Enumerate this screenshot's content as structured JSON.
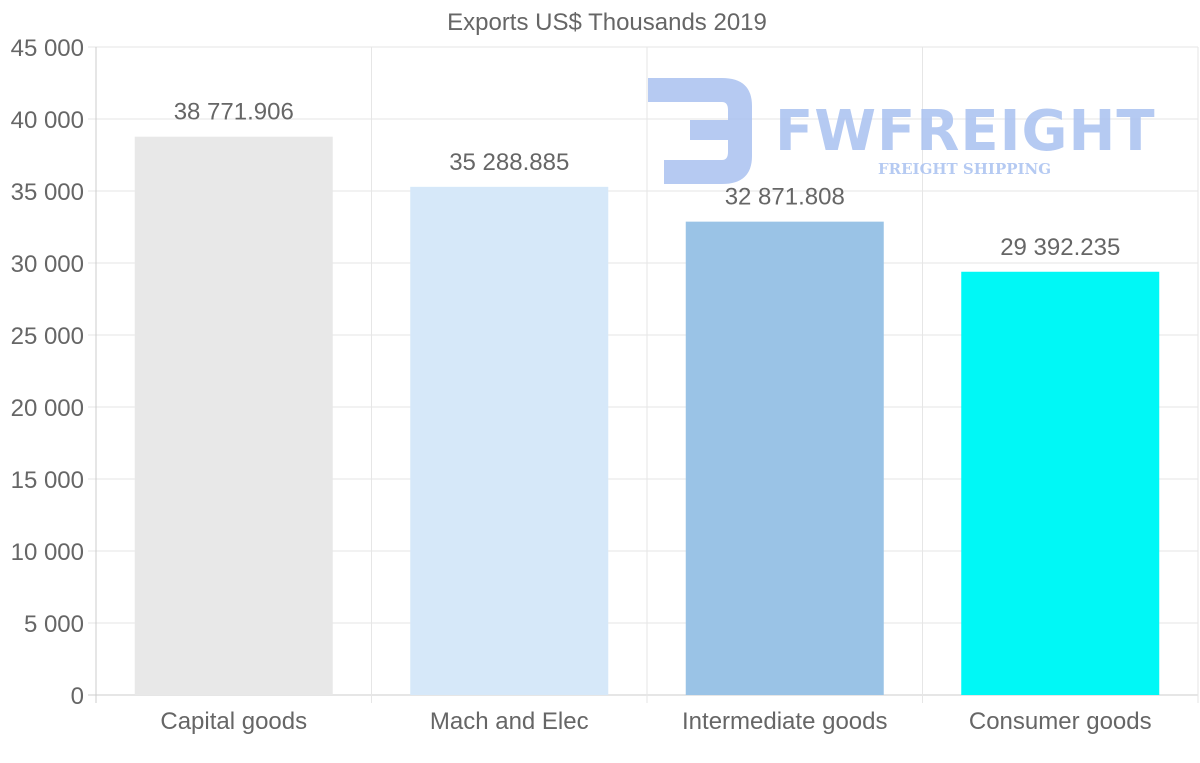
{
  "chart_data": {
    "type": "bar",
    "title": "Exports US$ Thousands 2019",
    "categories": [
      "Capital goods",
      "Mach and Elec",
      "Intermediate goods",
      "Consumer goods"
    ],
    "values": [
      38771.906,
      35288.885,
      32871.808,
      29392.235
    ],
    "value_labels": [
      "38 771.906",
      "35 288.885",
      "32 871.808",
      "29 392.235"
    ],
    "colors": [
      "#e8e8e8",
      "#d6e8f9",
      "#9ac3e6",
      "#00f8f6"
    ],
    "ylim": [
      0,
      45000
    ],
    "yticks": [
      0,
      5000,
      10000,
      15000,
      20000,
      25000,
      30000,
      35000,
      40000,
      45000
    ],
    "ytick_labels": [
      "0",
      "5 000",
      "10 000",
      "15 000",
      "20 000",
      "25 000",
      "30 000",
      "35 000",
      "40 000",
      "45 000"
    ],
    "xlabel": "",
    "ylabel": "",
    "grid": true
  },
  "watermark": {
    "brand": "FWFREIGHT",
    "tagline": "FREIGHT SHIPPING",
    "color": "#a9c1f0"
  }
}
